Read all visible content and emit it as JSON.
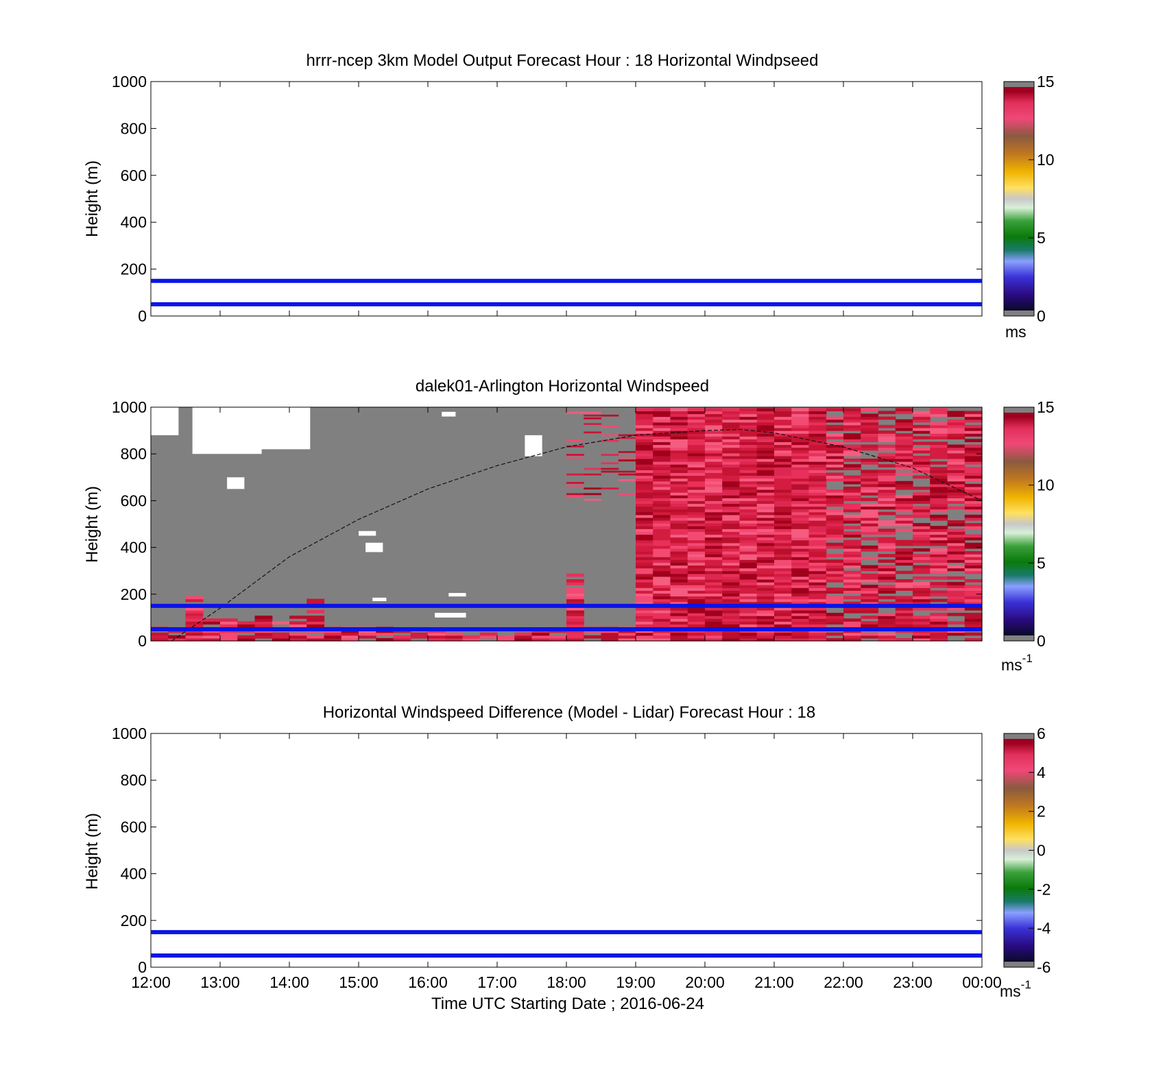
{
  "figure": {
    "xlabel": "Time UTC  Starting Date ; 2016-06-24",
    "x_ticks": [
      "12:00",
      "13:00",
      "14:00",
      "15:00",
      "16:00",
      "17:00",
      "18:00",
      "19:00",
      "20:00",
      "21:00",
      "22:00",
      "23:00",
      "00:00"
    ]
  },
  "chart_data": [
    {
      "type": "heatmap",
      "title": "hrrr-ncep 3km Model Output   Forecast Hour : 18 Horizontal Windpseed",
      "ylabel": "Height (m)",
      "ylim": [
        0,
        1000
      ],
      "y_ticks": [
        0,
        200,
        400,
        600,
        800,
        1000
      ],
      "xlim_hours": [
        12,
        24
      ],
      "reference_lines_m": [
        50,
        150
      ],
      "reference_line_color": "#0a14e6",
      "colorbar": {
        "min": 0,
        "max": 15,
        "ticks": [
          0,
          5,
          10,
          15
        ],
        "unit": "ms"
      },
      "cells": []
    },
    {
      "type": "heatmap",
      "title": "dalek01-Arlington  Horizontal Windspeed",
      "ylabel": "Height (m)",
      "ylim": [
        0,
        1000
      ],
      "y_ticks": [
        0,
        200,
        400,
        600,
        800,
        1000
      ],
      "xlim_hours": [
        12,
        24
      ],
      "reference_lines_m": [
        50,
        150
      ],
      "reference_line_color": "#0a14e6",
      "colorbar": {
        "min": 0,
        "max": 15,
        "ticks": [
          0,
          5,
          10,
          15
        ],
        "unit": "ms",
        "unit_exp": "-1"
      },
      "missing_color": "#808080",
      "profile_columns": [
        {
          "t": 12.0,
          "top": 1000,
          "hot": 60
        },
        {
          "t": 12.25,
          "top": 1000,
          "hot": 50
        },
        {
          "t": 12.5,
          "top": 1000,
          "hot": 200
        },
        {
          "t": 12.75,
          "top": 1000,
          "hot": 100
        },
        {
          "t": 13.0,
          "top": 1000,
          "hot": 100
        },
        {
          "t": 13.25,
          "top": 1000,
          "hot": 90
        },
        {
          "t": 13.5,
          "top": 1000,
          "hot": 110
        },
        {
          "t": 13.75,
          "top": 1000,
          "hot": 90
        },
        {
          "t": 14.0,
          "top": 1000,
          "hot": 110
        },
        {
          "t": 14.25,
          "top": 1000,
          "hot": 190
        },
        {
          "t": 14.5,
          "top": 1000,
          "hot": 70
        },
        {
          "t": 14.75,
          "top": 1000,
          "hot": 70
        },
        {
          "t": 15.0,
          "top": 1000,
          "hot": 70
        },
        {
          "t": 15.25,
          "top": 1000,
          "hot": 60
        },
        {
          "t": 15.5,
          "top": 1000,
          "hot": 50
        },
        {
          "t": 15.75,
          "top": 1000,
          "hot": 40
        },
        {
          "t": 16.0,
          "top": 1000,
          "hot": 50
        },
        {
          "t": 16.25,
          "top": 1000,
          "hot": 40
        },
        {
          "t": 16.5,
          "top": 1000,
          "hot": 40
        },
        {
          "t": 16.75,
          "top": 1000,
          "hot": 40
        },
        {
          "t": 17.0,
          "top": 1000,
          "hot": 40
        },
        {
          "t": 17.25,
          "top": 1000,
          "hot": 40
        },
        {
          "t": 17.5,
          "top": 1000,
          "hot": 50
        },
        {
          "t": 17.75,
          "top": 1000,
          "hot": 50
        },
        {
          "t": 18.0,
          "top": 1000,
          "hot": 290
        },
        {
          "t": 18.25,
          "top": 1000,
          "hot": 70
        },
        {
          "t": 18.5,
          "top": 1000,
          "hot": 60
        },
        {
          "t": 18.75,
          "top": 1000,
          "hot": 60
        },
        {
          "t": 19.0,
          "top": 1000,
          "hot": 1000
        },
        {
          "t": 19.25,
          "top": 1000,
          "hot": 1000
        },
        {
          "t": 19.5,
          "top": 1000,
          "hot": 1000
        },
        {
          "t": 19.75,
          "top": 1000,
          "hot": 1000
        },
        {
          "t": 20.0,
          "top": 1000,
          "hot": 1000
        },
        {
          "t": 20.25,
          "top": 1000,
          "hot": 1000
        },
        {
          "t": 20.5,
          "top": 1000,
          "hot": 1000
        },
        {
          "t": 20.75,
          "top": 1000,
          "hot": 1000
        },
        {
          "t": 21.0,
          "top": 1000,
          "hot": 1000
        },
        {
          "t": 21.25,
          "top": 1000,
          "hot": 1000
        },
        {
          "t": 21.5,
          "top": 1000,
          "hot": 1000
        },
        {
          "t": 21.75,
          "top": 1000,
          "hot": 1000
        },
        {
          "t": 22.0,
          "top": 1000,
          "hot": 1000
        },
        {
          "t": 22.25,
          "top": 1000,
          "hot": 1000
        },
        {
          "t": 22.5,
          "top": 1000,
          "hot": 1000
        },
        {
          "t": 22.75,
          "top": 1000,
          "hot": 1000
        },
        {
          "t": 23.0,
          "top": 1000,
          "hot": 1000
        },
        {
          "t": 23.25,
          "top": 1000,
          "hot": 1000
        },
        {
          "t": 23.5,
          "top": 1000,
          "hot": 1000
        },
        {
          "t": 23.75,
          "top": 1000,
          "hot": 1000
        }
      ],
      "boundary_layer_curve": [
        {
          "t": 12.3,
          "h": 0
        },
        {
          "t": 13.0,
          "h": 140
        },
        {
          "t": 14.0,
          "h": 360
        },
        {
          "t": 15.0,
          "h": 520
        },
        {
          "t": 16.0,
          "h": 650
        },
        {
          "t": 17.0,
          "h": 750
        },
        {
          "t": 18.0,
          "h": 830
        },
        {
          "t": 19.0,
          "h": 880
        },
        {
          "t": 20.0,
          "h": 900
        },
        {
          "t": 20.5,
          "h": 905
        },
        {
          "t": 21.0,
          "h": 890
        },
        {
          "t": 22.0,
          "h": 830
        },
        {
          "t": 23.0,
          "h": 740
        },
        {
          "t": 24.0,
          "h": 600
        }
      ]
    },
    {
      "type": "heatmap",
      "title": "Horizontal Windspeed Difference (Model - Lidar) Forecast Hour : 18",
      "ylabel": "Height (m)",
      "ylim": [
        0,
        1000
      ],
      "y_ticks": [
        0,
        200,
        400,
        600,
        800,
        1000
      ],
      "xlim_hours": [
        12,
        24
      ],
      "reference_lines_m": [
        50,
        150
      ],
      "reference_line_color": "#0a14e6",
      "colorbar": {
        "min": -6,
        "max": 6,
        "ticks": [
          -6,
          -4,
          -2,
          0,
          2,
          4,
          6
        ],
        "unit": "ms",
        "unit_exp": "-1"
      },
      "cells": []
    }
  ]
}
